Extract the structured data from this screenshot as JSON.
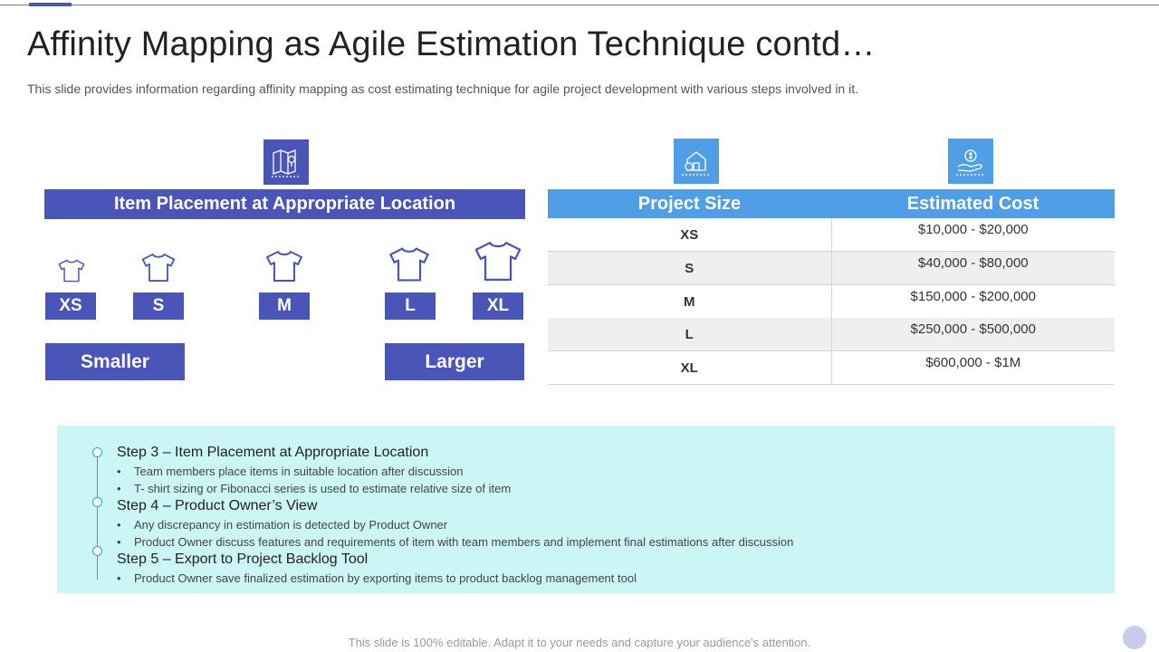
{
  "title": "Affinity Mapping as Agile Estimation Technique contd…",
  "subtitle": "This slide provides information regarding affinity mapping as cost estimating technique for agile project development with various steps involved in it.",
  "icons": {
    "map": "map-pin-icon",
    "house": "house-icon",
    "money": "money-hand-icon",
    "shirt": "t-shirt-icon"
  },
  "colors": {
    "primary": "#4a55b8",
    "table_header": "#4f9ee6",
    "steps_bg": "#ccf5f5",
    "timeline": "#2aa7c9"
  },
  "placement": {
    "header": "Item Placement at Appropriate Location",
    "sizes": [
      "XS",
      "S",
      "M",
      "L",
      "XL"
    ],
    "smaller": "Smaller",
    "larger": "Larger"
  },
  "table": {
    "headers": [
      "Project Size",
      "Estimated Cost"
    ],
    "rows": [
      {
        "size": "XS",
        "cost": "$10,000 - $20,000"
      },
      {
        "size": "S",
        "cost": "$40,000 - $80,000"
      },
      {
        "size": "M",
        "cost": "$150,000 - $200,000"
      },
      {
        "size": "L",
        "cost": "$250,000 - $500,000"
      },
      {
        "size": "XL",
        "cost": "$600,000 - $1M"
      }
    ]
  },
  "steps": [
    {
      "title": "Step 3 – Item Placement at Appropriate Location",
      "bullets": [
        "Team members place items in suitable location after discussion",
        "T- shirt sizing or Fibonacci series is used to estimate relative  size of item"
      ]
    },
    {
      "title": "Step 4 – Product Owner’s View",
      "bullets": [
        "Any discrepancy in estimation is detected by Product Owner",
        "Product Owner discuss features and requirements of item with team members and implement final estimations after discussion"
      ]
    },
    {
      "title": "Step 5 – Export to Project Backlog Tool",
      "bullets": [
        "Product Owner save finalized estimation by exporting items to product backlog management tool"
      ]
    }
  ],
  "bullet_char": "•",
  "footer": "This slide is 100% editable. Adapt it to your needs and capture your audience's attention."
}
